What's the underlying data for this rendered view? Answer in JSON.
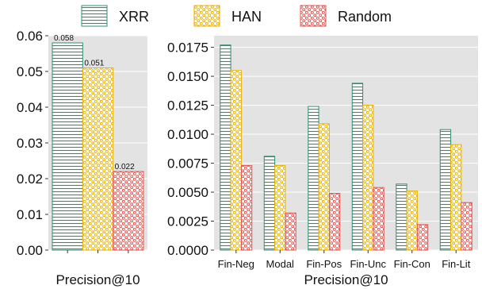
{
  "legend": {
    "placement": "top-center",
    "items": [
      {
        "label": "XRR",
        "color": "#2f8f73",
        "pattern": "horizontal-lines"
      },
      {
        "label": "HAN",
        "color": "#e9b200",
        "pattern": "yellow-dots"
      },
      {
        "label": "Random",
        "color": "#e2544f",
        "pattern": "red-circles"
      }
    ]
  },
  "chart_data": [
    {
      "type": "bar",
      "xlabel": "Precision@10",
      "ylabel": "",
      "ylim": [
        0,
        0.06
      ],
      "yticks": [
        "0.00",
        "0.01",
        "0.02",
        "0.03",
        "0.04",
        "0.05",
        "0.06"
      ],
      "grid": true,
      "categories": [
        ""
      ],
      "series": [
        {
          "name": "XRR",
          "values": [
            0.058
          ],
          "data_label": "0.058"
        },
        {
          "name": "HAN",
          "values": [
            0.051
          ],
          "data_label": "0.051"
        },
        {
          "name": "Random",
          "values": [
            0.022
          ],
          "data_label": "0.022"
        }
      ]
    },
    {
      "type": "bar",
      "xlabel": "Precision@10",
      "ylabel": "",
      "ylim": [
        0,
        0.0185
      ],
      "yticks": [
        "0.0000",
        "0.0025",
        "0.0050",
        "0.0075",
        "0.0100",
        "0.0125",
        "0.0150",
        "0.0175"
      ],
      "grid": true,
      "categories": [
        "Fin-Neg",
        "Modal",
        "Fin-Pos",
        "Fin-Unc",
        "Fin-Con",
        "Fin-Lit"
      ],
      "series": [
        {
          "name": "XRR",
          "values": [
            0.0177,
            0.0081,
            0.0124,
            0.0144,
            0.0057,
            0.0104
          ]
        },
        {
          "name": "HAN",
          "values": [
            0.0155,
            0.0073,
            0.0109,
            0.0125,
            0.0051,
            0.0091
          ]
        },
        {
          "name": "Random",
          "values": [
            0.0073,
            0.0032,
            0.0049,
            0.0054,
            0.0022,
            0.0041
          ]
        }
      ]
    }
  ]
}
